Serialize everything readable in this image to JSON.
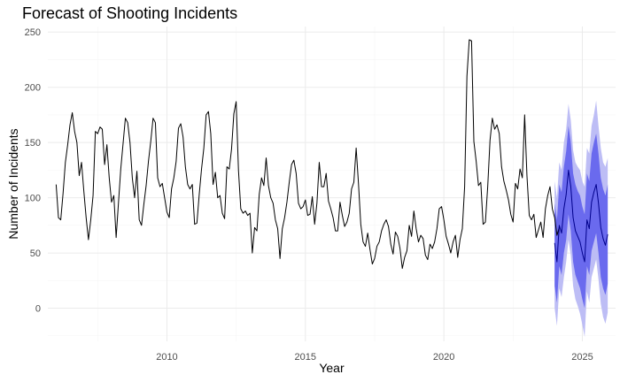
{
  "chart_data": {
    "type": "line",
    "title": "Forecast of Shooting Incidents",
    "xlabel": "Year",
    "ylabel": "Number of Incidents",
    "xlim": [
      2005.7,
      2026.2
    ],
    "ylim": [
      -30,
      255
    ],
    "x_ticks": [
      2010,
      2015,
      2020,
      2025
    ],
    "y_ticks": [
      0,
      50,
      100,
      150,
      200,
      250
    ],
    "grid": true,
    "colors": {
      "history": "#000000",
      "forecast": "#00008b",
      "band_inner": "#6a6aee",
      "band_outer": "#bdbdf5",
      "grid_major": "#ebebeb",
      "grid_minor": "#f5f5f5"
    },
    "history": {
      "start_year": 2006,
      "start_month": 1,
      "values": [
        112,
        82,
        80,
        104,
        132,
        148,
        166,
        177,
        160,
        150,
        120,
        132,
        106,
        82,
        62,
        80,
        102,
        160,
        158,
        164,
        162,
        130,
        148,
        118,
        96,
        102,
        64,
        95,
        126,
        149,
        172,
        168,
        150,
        118,
        100,
        124,
        80,
        75,
        94,
        111,
        133,
        151,
        172,
        168,
        118,
        110,
        113,
        100,
        87,
        82,
        108,
        118,
        133,
        163,
        167,
        155,
        128,
        112,
        108,
        112,
        76,
        77,
        103,
        126,
        145,
        175,
        178,
        158,
        112,
        123,
        100,
        102,
        86,
        81,
        128,
        126,
        144,
        176,
        187,
        125,
        90,
        86,
        88,
        84,
        86,
        50,
        73,
        70,
        103,
        118,
        111,
        136,
        111,
        100,
        95,
        80,
        72,
        45,
        72,
        82,
        96,
        114,
        130,
        134,
        122,
        95,
        90,
        92,
        98,
        84,
        85,
        101,
        76,
        95,
        132,
        110,
        110,
        122,
        97,
        90,
        82,
        70,
        70,
        96,
        84,
        74,
        78,
        86,
        108,
        114,
        145,
        113,
        76,
        60,
        56,
        68,
        53,
        40,
        45,
        56,
        60,
        70,
        76,
        80,
        74,
        58,
        49,
        69,
        65,
        54,
        36,
        46,
        52,
        75,
        65,
        88,
        72,
        60,
        66,
        63,
        48,
        44,
        58,
        54,
        60,
        72,
        90,
        92,
        80,
        65,
        58,
        50,
        60,
        66,
        46,
        62,
        72,
        110,
        210,
        243,
        242,
        151,
        133,
        111,
        114,
        76,
        78,
        110,
        152,
        172,
        162,
        166,
        158,
        128,
        115,
        107,
        98,
        85,
        78,
        113,
        108,
        126,
        118,
        175,
        120,
        84,
        80,
        85,
        64,
        71,
        78,
        64,
        90,
        102,
        110,
        90,
        82,
        66,
        73
      ]
    },
    "forecast": {
      "start_year": 2024,
      "start_month": 1,
      "mean": [
        59,
        42,
        75,
        68,
        90,
        103,
        125,
        110,
        82,
        70,
        65,
        60,
        50,
        42,
        80,
        72,
        96,
        105,
        112,
        95,
        73,
        63,
        57,
        67
      ],
      "lo80": [
        20,
        5,
        38,
        30,
        50,
        62,
        85,
        70,
        42,
        30,
        24,
        18,
        8,
        0,
        38,
        30,
        52,
        60,
        68,
        50,
        28,
        18,
        12,
        22
      ],
      "hi80": [
        95,
        80,
        112,
        105,
        128,
        142,
        165,
        150,
        122,
        112,
        106,
        102,
        92,
        85,
        122,
        115,
        140,
        150,
        158,
        140,
        118,
        108,
        102,
        112
      ],
      "lo95": [
        0,
        -16,
        18,
        10,
        28,
        42,
        62,
        48,
        20,
        8,
        2,
        -5,
        -15,
        -26,
        15,
        5,
        28,
        36,
        44,
        26,
        4,
        -8,
        -14,
        -4
      ],
      "hi95": [
        115,
        100,
        132,
        125,
        150,
        162,
        185,
        170,
        143,
        132,
        128,
        125,
        115,
        110,
        145,
        140,
        165,
        175,
        188,
        165,
        145,
        132,
        128,
        136
      ]
    }
  }
}
